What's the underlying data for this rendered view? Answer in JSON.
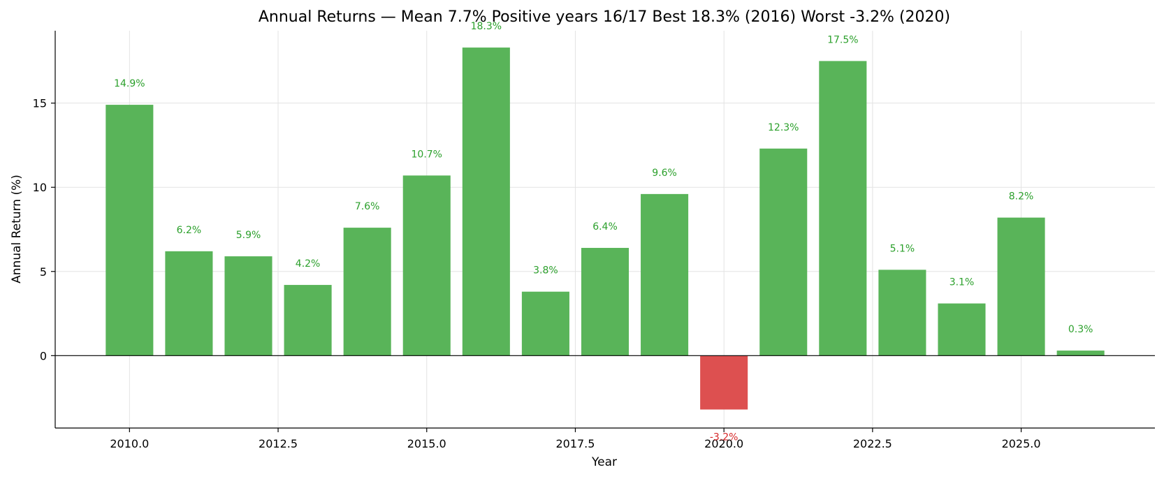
{
  "chart_data": {
    "type": "bar",
    "title": "Annual Returns — Mean 7.7%  Positive years 16/17  Best 18.3% (2016)  Worst -3.2% (2020)",
    "xlabel": "Year",
    "ylabel": "Annual Return (%)",
    "x": [
      2010,
      2011,
      2012,
      2013,
      2014,
      2015,
      2016,
      2017,
      2018,
      2019,
      2020,
      2021,
      2022,
      2023,
      2024,
      2025,
      2026
    ],
    "values": [
      14.9,
      6.2,
      5.9,
      4.2,
      7.6,
      10.7,
      18.3,
      3.8,
      6.4,
      9.6,
      -3.2,
      12.3,
      17.5,
      5.1,
      3.1,
      8.2,
      0.3
    ],
    "labels": [
      "14.9%",
      "6.2%",
      "5.9%",
      "4.2%",
      "7.6%",
      "10.7%",
      "18.3%",
      "3.8%",
      "6.4%",
      "9.6%",
      "-3.2%",
      "12.3%",
      "17.5%",
      "5.1%",
      "3.1%",
      "8.2%",
      "0.3%"
    ],
    "xlim": [
      2008.75,
      2027.25
    ],
    "ylim": [
      -4.3,
      19.3
    ],
    "xticks": [
      2010.0,
      2012.5,
      2015.0,
      2017.5,
      2020.0,
      2022.5,
      2025.0
    ],
    "xtick_labels": [
      "2010.0",
      "2012.5",
      "2015.0",
      "2017.5",
      "2020.0",
      "2022.5",
      "2025.0"
    ],
    "yticks": [
      0,
      5,
      10,
      15
    ],
    "ytick_labels": [
      "0",
      "5",
      "10",
      "15"
    ],
    "bar_width": 0.8,
    "grid": true,
    "colors": {
      "positive": "#59b459",
      "negative": "#dd5050",
      "positive_label": "#2ca02c",
      "negative_label": "#d62728"
    }
  }
}
